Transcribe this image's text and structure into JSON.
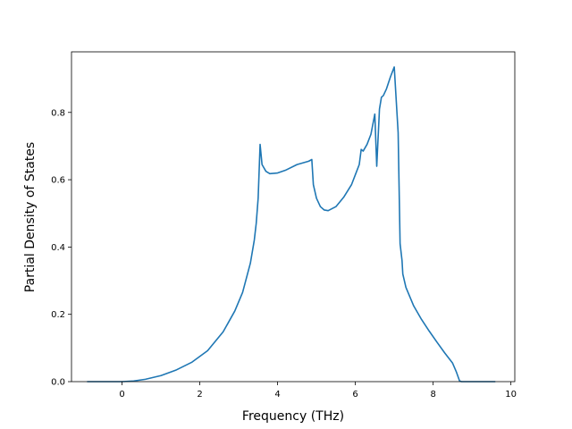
{
  "chart_data": {
    "type": "line",
    "title": "",
    "xlabel": "Frequency (THz)",
    "ylabel": "Partial Density of States",
    "xlim": [
      -1.3,
      10.1
    ],
    "ylim": [
      0.0,
      0.98
    ],
    "xticks": [
      0,
      2,
      4,
      6,
      8,
      10
    ],
    "yticks": [
      0.0,
      0.2,
      0.4,
      0.6,
      0.8
    ],
    "ytick_labels": [
      "0.0",
      "0.2",
      "0.4",
      "0.6",
      "0.8"
    ],
    "grid": false,
    "legend": "none",
    "colors": {
      "line": "#1f77b4"
    },
    "series": [
      {
        "x": [
          -0.9,
          -0.5,
          0.0,
          0.3,
          0.6,
          1.0,
          1.4,
          1.8,
          2.2,
          2.6,
          2.9,
          3.1,
          3.3,
          3.4,
          3.45,
          3.5,
          3.55,
          3.6,
          3.7,
          3.8,
          4.0,
          4.2,
          4.5,
          4.8,
          4.88,
          4.92,
          5.0,
          5.1,
          5.2,
          5.3,
          5.5,
          5.7,
          5.9,
          6.0,
          6.1,
          6.15,
          6.2,
          6.25,
          6.3,
          6.4,
          6.5,
          6.55,
          6.62,
          6.67,
          6.72,
          6.8,
          6.9,
          7.0,
          7.1,
          7.15,
          7.2,
          7.22,
          7.3,
          7.5,
          7.7,
          7.9,
          8.1,
          8.3,
          8.5,
          8.6,
          8.68,
          8.73,
          8.8,
          9.6
        ],
        "y": [
          0.0,
          0.0,
          0.0,
          0.002,
          0.007,
          0.018,
          0.035,
          0.058,
          0.092,
          0.148,
          0.21,
          0.265,
          0.352,
          0.42,
          0.47,
          0.545,
          0.705,
          0.645,
          0.625,
          0.618,
          0.62,
          0.628,
          0.645,
          0.655,
          0.66,
          0.585,
          0.545,
          0.52,
          0.51,
          0.508,
          0.52,
          0.548,
          0.585,
          0.615,
          0.645,
          0.69,
          0.685,
          0.695,
          0.705,
          0.735,
          0.795,
          0.64,
          0.81,
          0.845,
          0.85,
          0.87,
          0.905,
          0.935,
          0.74,
          0.41,
          0.36,
          0.32,
          0.28,
          0.225,
          0.185,
          0.15,
          0.117,
          0.085,
          0.055,
          0.028,
          0.002,
          0.0,
          0.0,
          0.0
        ]
      }
    ]
  }
}
